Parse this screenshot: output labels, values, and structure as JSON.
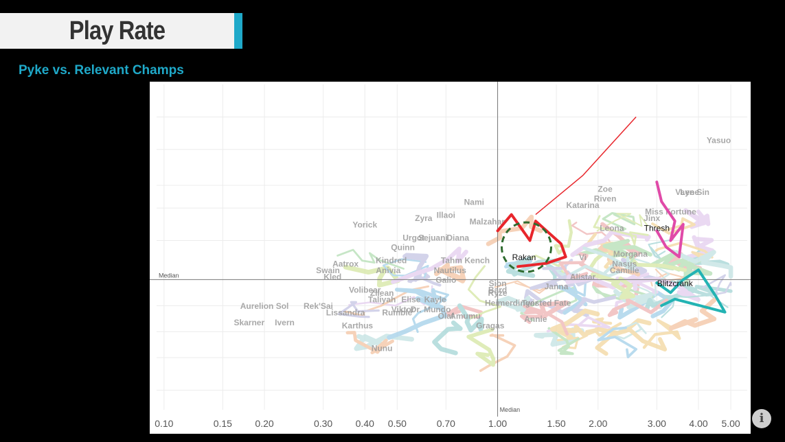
{
  "header": {
    "title": "Play Rate",
    "subtitle": "Pyke vs. Relevant Champs"
  },
  "colors": {
    "accent": "#1fa9c9",
    "rakan": "#e8262c",
    "thresh": "#e04aa8",
    "blitzcrank": "#23b3b3",
    "rakan_circle": "#2f6b2f"
  },
  "info_icon": "info-icon",
  "chart_data": {
    "type": "line",
    "x_scale": "log",
    "x_ticks": [
      "0.10",
      "0.15",
      "0.20",
      "0.30",
      "0.40",
      "0.50",
      "0.70",
      "1.00",
      "1.50",
      "2.00",
      "3.00",
      "4.00",
      "5.00"
    ],
    "x_tick_values": [
      0.1,
      0.15,
      0.2,
      0.3,
      0.4,
      0.5,
      0.7,
      1.0,
      1.5,
      2.0,
      3.0,
      4.0,
      5.0
    ],
    "xlim": [
      0.095,
      5.6
    ],
    "ylim": [
      0,
      1
    ],
    "median_x_label": "Median",
    "median_y_label": "Median",
    "median_x": 1.0,
    "median_y": 0.4,
    "grid": true,
    "highlighted_series": [
      {
        "name": "Rakan",
        "x": [
          1.0,
          1.1,
          1.25,
          1.3,
          1.55,
          1.6,
          1.4,
          1.15
        ],
        "y": [
          0.55,
          0.6,
          0.52,
          0.58,
          0.51,
          0.47,
          0.45,
          0.44
        ]
      },
      {
        "name": "Thresh",
        "x": [
          3.0,
          3.1,
          3.4,
          3.3,
          3.6,
          3.5,
          3.2,
          3.0
        ],
        "y": [
          0.7,
          0.64,
          0.58,
          0.52,
          0.57,
          0.47,
          0.5,
          0.55
        ]
      },
      {
        "name": "Blitzcrank",
        "x": [
          3.0,
          3.3,
          3.6,
          4.0,
          4.5,
          4.8,
          3.4,
          3.1
        ],
        "y": [
          0.39,
          0.36,
          0.4,
          0.43,
          0.35,
          0.3,
          0.34,
          0.32
        ]
      }
    ],
    "highlight_labels": [
      {
        "name": "Rakan",
        "x": 1.2,
        "y": 0.46
      },
      {
        "name": "Thresh",
        "x": 3.0,
        "y": 0.55
      },
      {
        "name": "Blitzcrank",
        "x": 3.4,
        "y": 0.38
      }
    ],
    "champion_labels": [
      {
        "name": "Yasuo",
        "x": 4.6,
        "y": 0.82
      },
      {
        "name": "Nami",
        "x": 0.85,
        "y": 0.63
      },
      {
        "name": "Zoe",
        "x": 2.1,
        "y": 0.67
      },
      {
        "name": "Riven",
        "x": 2.1,
        "y": 0.64
      },
      {
        "name": "Katarina",
        "x": 1.8,
        "y": 0.62
      },
      {
        "name": "Vayne",
        "x": 3.7,
        "y": 0.66
      },
      {
        "name": "Lee Sin",
        "x": 3.9,
        "y": 0.66
      },
      {
        "name": "Miss Fortune",
        "x": 3.3,
        "y": 0.6
      },
      {
        "name": "Yorick",
        "x": 0.4,
        "y": 0.56
      },
      {
        "name": "Zyra",
        "x": 0.6,
        "y": 0.58
      },
      {
        "name": "Illaoi",
        "x": 0.7,
        "y": 0.59
      },
      {
        "name": "Urgot",
        "x": 0.56,
        "y": 0.52
      },
      {
        "name": "Sejuani",
        "x": 0.64,
        "y": 0.52
      },
      {
        "name": "Diana",
        "x": 0.76,
        "y": 0.52
      },
      {
        "name": "Malzahar",
        "x": 0.93,
        "y": 0.57
      },
      {
        "name": "Quinn",
        "x": 0.52,
        "y": 0.49
      },
      {
        "name": "Leona",
        "x": 2.2,
        "y": 0.55
      },
      {
        "name": "Jinx",
        "x": 2.9,
        "y": 0.58
      },
      {
        "name": "Aatrox",
        "x": 0.35,
        "y": 0.44
      },
      {
        "name": "Kindred",
        "x": 0.48,
        "y": 0.45
      },
      {
        "name": "Anivia",
        "x": 0.47,
        "y": 0.42
      },
      {
        "name": "Swain",
        "x": 0.31,
        "y": 0.42
      },
      {
        "name": "Tahm Kench",
        "x": 0.8,
        "y": 0.45
      },
      {
        "name": "Kled",
        "x": 0.32,
        "y": 0.4
      },
      {
        "name": "Nautilus",
        "x": 0.72,
        "y": 0.42
      },
      {
        "name": "Vi",
        "x": 1.8,
        "y": 0.46
      },
      {
        "name": "Morgana",
        "x": 2.5,
        "y": 0.47
      },
      {
        "name": "Nasus",
        "x": 2.4,
        "y": 0.44
      },
      {
        "name": "Camille",
        "x": 2.4,
        "y": 0.42
      },
      {
        "name": "Alistar",
        "x": 1.8,
        "y": 0.4
      },
      {
        "name": "Volibear",
        "x": 0.4,
        "y": 0.36
      },
      {
        "name": "Sion",
        "x": 1.0,
        "y": 0.38
      },
      {
        "name": "Galio",
        "x": 0.7,
        "y": 0.39
      },
      {
        "name": "Janna",
        "x": 1.5,
        "y": 0.37
      },
      {
        "name": "Taliyah",
        "x": 0.45,
        "y": 0.33
      },
      {
        "name": "Bard",
        "x": 1.0,
        "y": 0.36
      },
      {
        "name": "Ryze",
        "x": 1.0,
        "y": 0.35
      },
      {
        "name": "Kayle",
        "x": 0.65,
        "y": 0.33
      },
      {
        "name": "Zilean",
        "x": 0.45,
        "y": 0.35
      },
      {
        "name": "Aurelion Sol",
        "x": 0.2,
        "y": 0.31
      },
      {
        "name": "Rek'Sai",
        "x": 0.29,
        "y": 0.31
      },
      {
        "name": "Viktor",
        "x": 0.52,
        "y": 0.3
      },
      {
        "name": "Dr. Mundo",
        "x": 0.63,
        "y": 0.3
      },
      {
        "name": "Heimerdinger",
        "x": 1.1,
        "y": 0.32
      },
      {
        "name": "Lissandra",
        "x": 0.35,
        "y": 0.29
      },
      {
        "name": "Rumble",
        "x": 0.5,
        "y": 0.29
      },
      {
        "name": "Olaf",
        "x": 0.7,
        "y": 0.28
      },
      {
        "name": "Amumu",
        "x": 0.8,
        "y": 0.28
      },
      {
        "name": "Twisted Fate",
        "x": 1.4,
        "y": 0.32
      },
      {
        "name": "Skarner",
        "x": 0.18,
        "y": 0.26
      },
      {
        "name": "Ivern",
        "x": 0.23,
        "y": 0.26
      },
      {
        "name": "Annie",
        "x": 1.3,
        "y": 0.27
      },
      {
        "name": "Karthus",
        "x": 0.38,
        "y": 0.25
      },
      {
        "name": "Gragas",
        "x": 0.95,
        "y": 0.25
      },
      {
        "name": "Elise",
        "x": 0.55,
        "y": 0.33
      },
      {
        "name": "Nunu",
        "x": 0.45,
        "y": 0.18
      }
    ]
  }
}
